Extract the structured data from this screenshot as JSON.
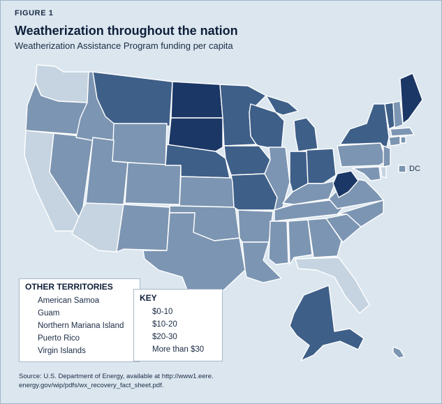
{
  "figure_label": "FIGURE 1",
  "title": "Weatherization throughout the nation",
  "subtitle": "Weatherization Assistance Program funding per capita",
  "dc_label": "DC",
  "colors": {
    "c0": "#c6d4e1",
    "c1": "#7c95b2",
    "c2": "#3e5f88",
    "c3": "#1b3766",
    "background": "#dbe6ef"
  },
  "territories": {
    "heading": "OTHER TERRITORIES",
    "items": [
      {
        "label": "American Samoa",
        "class": "c1"
      },
      {
        "label": "Guam",
        "class": "c0"
      },
      {
        "label": "Northern Mariana Island",
        "class": "c1"
      },
      {
        "label": "Puerto Rico",
        "class": "c1"
      },
      {
        "label": "Virgin Islands",
        "class": "c1"
      }
    ]
  },
  "key": {
    "heading": "KEY",
    "items": [
      {
        "label": "$0-10",
        "class": "c0"
      },
      {
        "label": "$10-20",
        "class": "c1"
      },
      {
        "label": "$20-30",
        "class": "c2"
      },
      {
        "label": "More than $30",
        "class": "c3"
      }
    ]
  },
  "source": "Source: U.S. Department of Energy, available at http://www1.eere. energy.gov/wip/pdfs/wx_recovery_fact_sheet.pdf."
}
